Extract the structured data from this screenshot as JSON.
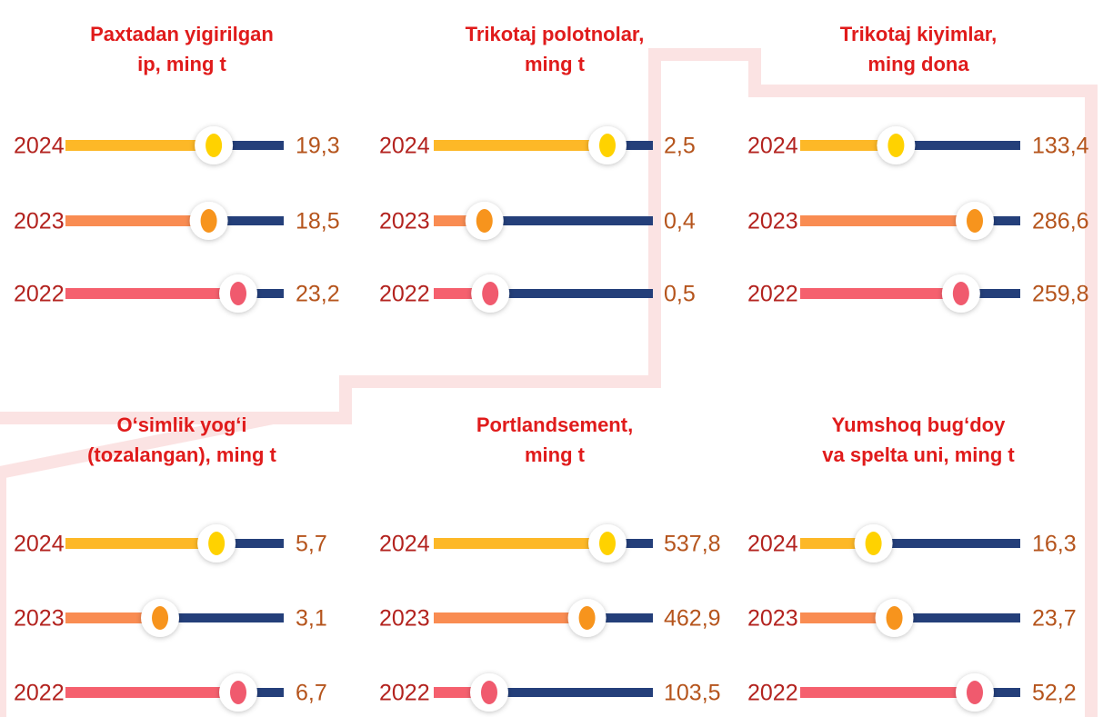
{
  "chart_data": [
    {
      "type": "slider",
      "title": [
        "Paxtadan  yigirilgan",
        "ip, ming t"
      ],
      "categories": [
        "2024",
        "2023",
        "2022"
      ],
      "values": [
        19.3,
        18.5,
        23.2
      ],
      "value_labels": [
        "19,3",
        "18,5",
        "23,2"
      ]
    },
    {
      "type": "slider",
      "title": [
        "Trikotaj polotnolar,",
        "ming t"
      ],
      "categories": [
        "2024",
        "2023",
        "2022"
      ],
      "values": [
        2.5,
        0.4,
        0.5
      ],
      "value_labels": [
        "2,5",
        "0,4",
        "0,5"
      ]
    },
    {
      "type": "slider",
      "title": [
        "Trikotaj kiyimlar,",
        "ming dona"
      ],
      "categories": [
        "2024",
        "2023",
        "2022"
      ],
      "values": [
        133.4,
        286.6,
        259.8
      ],
      "value_labels": [
        "133,4",
        "286,6",
        "259,8"
      ]
    },
    {
      "type": "slider",
      "title": [
        "O‘simlik yog‘i",
        "(tozalangan), ming t"
      ],
      "categories": [
        "2024",
        "2023",
        "2022"
      ],
      "values": [
        5.7,
        3.1,
        6.7
      ],
      "value_labels": [
        "5,7",
        "3,1",
        "6,7"
      ]
    },
    {
      "type": "slider",
      "title": [
        "Portlandsement,",
        "ming t"
      ],
      "categories": [
        "2024",
        "2023",
        "2022"
      ],
      "values": [
        537.8,
        462.9,
        103.5
      ],
      "value_labels": [
        "537,8",
        "462,9",
        "103,5"
      ]
    },
    {
      "type": "slider",
      "title": [
        "Yumshoq bug‘doy",
        "va spelta uni, ming t"
      ],
      "categories": [
        "2024",
        "2023",
        "2022"
      ],
      "values": [
        16.3,
        23.7,
        52.2
      ],
      "value_labels": [
        "16,3",
        "23,7",
        "52,2"
      ]
    }
  ],
  "colors": {
    "rows": [
      "#fdb827",
      "#f98c52",
      "#f5606e"
    ],
    "knobs": [
      "#ffd200",
      "#f7941d",
      "#f05a6e"
    ],
    "track": "#243f7a"
  }
}
